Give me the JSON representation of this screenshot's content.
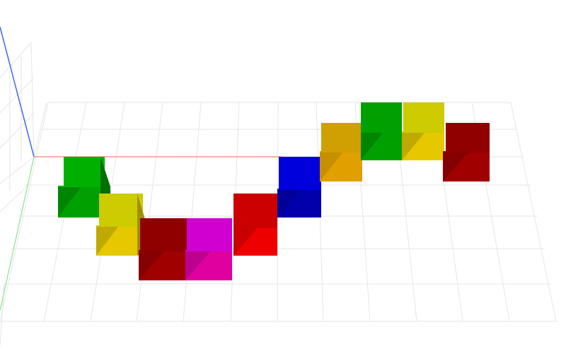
{
  "scene": {
    "background": "#ffffff",
    "grid_color": "#e6e6e6",
    "axes": {
      "x_color": "#f08080",
      "y_color": "#90e090",
      "z_color": "#4466ee"
    },
    "blocks": [
      {
        "name": "block-green-1",
        "color": "green",
        "front": "#00a000",
        "top": "#00b000",
        "side": "#007000"
      },
      {
        "name": "block-yellow-1",
        "color": "yellow",
        "front": "#e6c800",
        "top": "#cccc00",
        "side": "#a09000"
      },
      {
        "name": "block-darkred-1",
        "color": "dark-red",
        "front": "#a00000",
        "top": "#900000",
        "side": "#700000"
      },
      {
        "name": "block-magenta-1",
        "color": "magenta",
        "front": "#e000a0",
        "top": "#d000d0",
        "side": "#a00080"
      },
      {
        "name": "block-red-1",
        "color": "red",
        "front": "#ee0000",
        "top": "#cc0000",
        "side": "#aa0000"
      },
      {
        "name": "block-blue-1",
        "color": "blue",
        "front": "#0000aa",
        "top": "#0000dd",
        "side": "#000088"
      },
      {
        "name": "block-orange-1",
        "color": "orange",
        "front": "#e0a000",
        "top": "#d0a000",
        "side": "#b08000"
      },
      {
        "name": "block-green-2",
        "color": "green",
        "front": "#00a000",
        "top": "#00a000",
        "side": "#007000"
      },
      {
        "name": "block-yellow-2",
        "color": "yellow",
        "front": "#e6c800",
        "top": "#cccc00",
        "side": "#a09000"
      },
      {
        "name": "block-darkred-2",
        "color": "dark-red",
        "front": "#a00000",
        "top": "#900000",
        "side": "#700000"
      }
    ]
  }
}
